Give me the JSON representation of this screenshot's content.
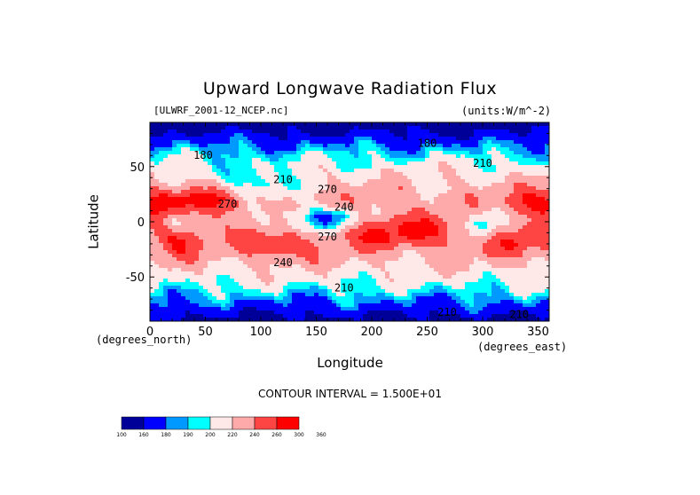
{
  "title": "Upward Longwave Radiation Flux",
  "file_label": "[ULWRF_2001-12_NCEP.nc]",
  "units_label": "(units:W/m^-2)",
  "x_unit_left": "(degrees_north)",
  "x_unit_right": "(degrees_east)",
  "contour_text": "CONTOUR INTERVAL = 1.500E+01",
  "colors": {
    "160": "#000099",
    "180": "#0000ff",
    "190": "#0099ff",
    "200": "#00ffff",
    "220": "#ffe8e8",
    "240": "#ffaaaa",
    "260": "#ff4444",
    "300": "#ff0000"
  },
  "chart_data": {
    "type": "heatmap",
    "title": "Upward Longwave Radiation Flux",
    "xlabel": "Longitude",
    "ylabel": "Latitude",
    "xlim": [
      0,
      360
    ],
    "ylim": [
      -90,
      90
    ],
    "xticks": [
      0,
      50,
      100,
      150,
      200,
      250,
      300,
      350
    ],
    "yticks": [
      -50,
      0,
      50
    ],
    "colorbar": {
      "levels": [
        "100",
        "160",
        "180",
        "190",
        "200",
        "220",
        "240",
        "260",
        "300",
        "360"
      ],
      "colors": [
        "#000099",
        "#0000ff",
        "#0099ff",
        "#00ffff",
        "#ffe8e8",
        "#ffaaaa",
        "#ff4444",
        "#ff0000"
      ]
    },
    "contour_labels": [
      {
        "text": "180",
        "lon": 250,
        "lat": 68
      },
      {
        "text": "180",
        "lon": 48,
        "lat": 57
      },
      {
        "text": "210",
        "lon": 300,
        "lat": 50
      },
      {
        "text": "210",
        "lon": 120,
        "lat": 35
      },
      {
        "text": "270",
        "lon": 160,
        "lat": 26
      },
      {
        "text": "270",
        "lon": 70,
        "lat": 13
      },
      {
        "text": "240",
        "lon": 175,
        "lat": 10
      },
      {
        "text": "270",
        "lon": 160,
        "lat": -17
      },
      {
        "text": "240",
        "lon": 120,
        "lat": -40
      },
      {
        "text": "210",
        "lon": 175,
        "lat": -63
      },
      {
        "text": "210",
        "lon": 268,
        "lat": -85
      },
      {
        "text": "210",
        "lon": 333,
        "lat": -87
      }
    ]
  }
}
